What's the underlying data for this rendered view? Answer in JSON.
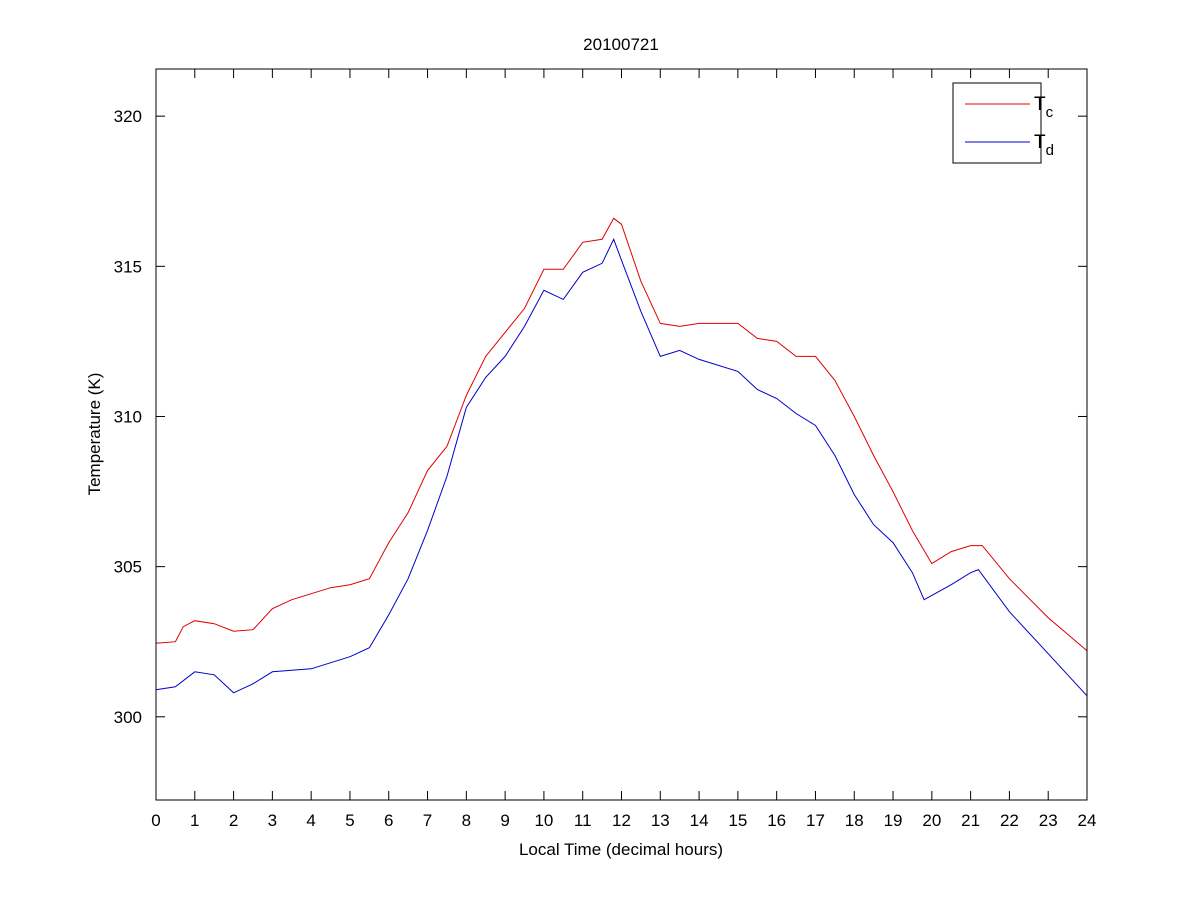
{
  "chart_data": {
    "type": "line",
    "title": "20100721",
    "xlabel": "Local Time (decimal hours)",
    "ylabel": "Temperature (K)",
    "xlim": [
      0,
      24
    ],
    "ylim": [
      297.23,
      321.57
    ],
    "xticks": [
      0,
      1,
      2,
      3,
      4,
      5,
      6,
      7,
      8,
      9,
      10,
      11,
      12,
      13,
      14,
      15,
      16,
      17,
      18,
      19,
      20,
      21,
      22,
      23,
      24
    ],
    "yticks": [
      300,
      305,
      310,
      315,
      320
    ],
    "grid": false,
    "legend_position": "top-right",
    "series": [
      {
        "name": "T",
        "subscript": "c",
        "color": "#e00000",
        "x": [
          0,
          0.5,
          0.7,
          1,
          1.5,
          2,
          2.5,
          3,
          3.5,
          4,
          4.5,
          5,
          5.5,
          6,
          6.5,
          7,
          7.5,
          8,
          8.5,
          9,
          9.5,
          10,
          10.5,
          11,
          11.5,
          11.8,
          12,
          12.5,
          13,
          13.5,
          14,
          15,
          15.5,
          16,
          16.5,
          17,
          17.5,
          18,
          18.5,
          19,
          19.5,
          20,
          20.5,
          21,
          21.3,
          22,
          23,
          24
        ],
        "y": [
          302.45,
          302.5,
          303.0,
          303.2,
          303.1,
          302.85,
          302.9,
          303.6,
          303.9,
          304.1,
          304.3,
          304.4,
          304.6,
          305.8,
          306.8,
          308.2,
          309.0,
          310.7,
          312.0,
          312.8,
          313.6,
          314.9,
          314.9,
          315.8,
          315.9,
          316.6,
          316.4,
          314.5,
          313.1,
          313.0,
          313.1,
          313.1,
          312.6,
          312.5,
          312.0,
          312.0,
          311.2,
          310.0,
          308.7,
          307.5,
          306.2,
          305.1,
          305.5,
          305.7,
          305.7,
          304.6,
          303.3,
          302.2
        ]
      },
      {
        "name": "T",
        "subscript": "d",
        "color": "#0000c8",
        "x": [
          0,
          0.5,
          1,
          1.5,
          2,
          2.5,
          3,
          4,
          5,
          5.5,
          6,
          6.5,
          7,
          7.5,
          8,
          8.5,
          9,
          9.5,
          10,
          10.5,
          11,
          11.5,
          11.8,
          12,
          12.5,
          13,
          13.5,
          14,
          15,
          15.5,
          16,
          16.5,
          17,
          17.5,
          18,
          18.5,
          19,
          19.5,
          19.8,
          20.5,
          21,
          21.2,
          22,
          23,
          24
        ],
        "y": [
          300.9,
          301.0,
          301.5,
          301.4,
          300.8,
          301.1,
          301.5,
          301.6,
          302.0,
          302.3,
          303.4,
          304.6,
          306.2,
          308.0,
          310.3,
          311.3,
          312.0,
          313.0,
          314.2,
          313.9,
          314.8,
          315.1,
          315.9,
          315.2,
          313.5,
          312.0,
          312.2,
          311.9,
          311.5,
          310.9,
          310.6,
          310.1,
          309.7,
          308.7,
          307.4,
          306.4,
          305.8,
          304.8,
          303.9,
          304.4,
          304.8,
          304.9,
          303.5,
          302.1,
          300.7
        ]
      }
    ]
  }
}
